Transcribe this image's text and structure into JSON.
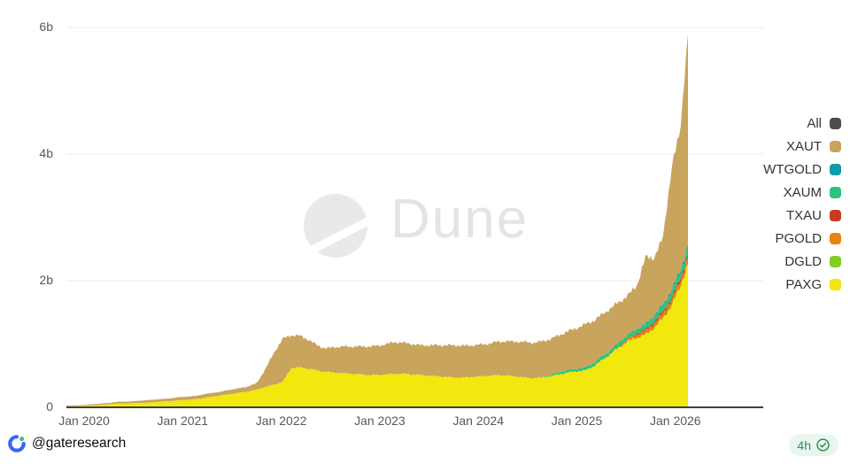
{
  "watermark": {
    "brand": "Dune"
  },
  "footer": {
    "handle": "@gateresearch",
    "logo": "gate-logo"
  },
  "badge": {
    "label": "4h",
    "icon": "verified-check-icon",
    "text_color": "#2e8b57",
    "bg": "#e9f6ef"
  },
  "chart_data": {
    "type": "area",
    "stacked": true,
    "title": "",
    "xlabel": "",
    "ylabel": "",
    "value_suffix": "b",
    "ylim": [
      0,
      6.2
    ],
    "grid": "horizontal",
    "legend_position": "right",
    "x_tick_labels": [
      "Jan 2020",
      "Jan 2021",
      "Jan 2022",
      "Jan 2023",
      "Jan 2024",
      "Jan 2025",
      "Jan 2026"
    ],
    "y_ticks": [
      {
        "label": "0",
        "value": 0
      },
      {
        "label": "2b",
        "value": 2
      },
      {
        "label": "4b",
        "value": 4
      },
      {
        "label": "6b",
        "value": 6
      }
    ],
    "legend": [
      {
        "label": "All",
        "color": "#4d4d4d"
      },
      {
        "label": "XAUT",
        "color": "#c9a45c"
      },
      {
        "label": "WTGOLD",
        "color": "#0f9bab"
      },
      {
        "label": "XAUM",
        "color": "#2ec27e"
      },
      {
        "label": "TXAU",
        "color": "#c93b1e"
      },
      {
        "label": "PGOLD",
        "color": "#e8830e"
      },
      {
        "label": "DGLD",
        "color": "#83cc26"
      },
      {
        "label": "PAXG",
        "color": "#efe513"
      }
    ],
    "stack_order_bottom_to_top": [
      "PAXG",
      "DGLD",
      "PGOLD",
      "TXAU",
      "XAUM",
      "WTGOLD",
      "XAUT"
    ],
    "x": [
      "2020-01",
      "2020-02",
      "2020-03",
      "2020-04",
      "2020-05",
      "2020-06",
      "2020-07",
      "2020-08",
      "2020-09",
      "2020-10",
      "2020-11",
      "2020-12",
      "2021-01",
      "2021-02",
      "2021-03",
      "2021-04",
      "2021-05",
      "2021-06",
      "2021-07",
      "2021-08",
      "2021-09",
      "2021-10",
      "2021-11",
      "2021-12",
      "2022-01",
      "2022-02",
      "2022-03",
      "2022-04",
      "2022-05",
      "2022-06",
      "2022-07",
      "2022-08",
      "2022-09",
      "2022-10",
      "2022-11",
      "2022-12",
      "2023-01",
      "2023-02",
      "2023-03",
      "2023-04",
      "2023-05",
      "2023-06",
      "2023-07",
      "2023-08",
      "2023-09",
      "2023-10",
      "2023-11",
      "2023-12",
      "2024-01",
      "2024-02",
      "2024-03",
      "2024-04",
      "2024-05",
      "2024-06",
      "2024-07",
      "2024-08",
      "2024-09",
      "2024-10",
      "2024-11",
      "2024-12",
      "2025-01",
      "2025-02",
      "2025-03",
      "2025-04",
      "2025-05",
      "2025-06",
      "2025-07",
      "2025-08",
      "2025-09",
      "2025-10",
      "2025-11",
      "2025-12",
      "2026-01"
    ],
    "series": [
      {
        "name": "PAXG",
        "color": "#f2e80e",
        "values": [
          0.02,
          0.02,
          0.03,
          0.03,
          0.04,
          0.05,
          0.06,
          0.06,
          0.07,
          0.07,
          0.08,
          0.09,
          0.1,
          0.11,
          0.12,
          0.13,
          0.15,
          0.17,
          0.19,
          0.21,
          0.23,
          0.25,
          0.28,
          0.32,
          0.36,
          0.4,
          0.62,
          0.63,
          0.61,
          0.58,
          0.56,
          0.55,
          0.54,
          0.53,
          0.52,
          0.51,
          0.51,
          0.52,
          0.53,
          0.53,
          0.52,
          0.51,
          0.5,
          0.49,
          0.48,
          0.47,
          0.47,
          0.48,
          0.49,
          0.5,
          0.51,
          0.5,
          0.49,
          0.47,
          0.46,
          0.47,
          0.49,
          0.52,
          0.55,
          0.57,
          0.58,
          0.65,
          0.75,
          0.85,
          0.95,
          1.05,
          1.1,
          1.15,
          1.25,
          1.4,
          1.6,
          1.9,
          2.3
        ]
      },
      {
        "name": "DGLD",
        "color": "#83cc26",
        "values": [
          0,
          0,
          0,
          0,
          0,
          0,
          0,
          0,
          0,
          0,
          0,
          0,
          0,
          0,
          0,
          0,
          0,
          0,
          0,
          0,
          0,
          0,
          0,
          0,
          0,
          0,
          0,
          0,
          0,
          0,
          0,
          0,
          0,
          0,
          0,
          0,
          0,
          0,
          0,
          0,
          0,
          0,
          0,
          0,
          0,
          0,
          0,
          0,
          0,
          0,
          0,
          0,
          0,
          0,
          0,
          0,
          0,
          0,
          0,
          0,
          0,
          0,
          0,
          0,
          0,
          0,
          0,
          0,
          0.01,
          0.01,
          0.01,
          0.01,
          0.01
        ]
      },
      {
        "name": "PGOLD",
        "color": "#e8830e",
        "values": [
          0,
          0,
          0,
          0,
          0,
          0,
          0,
          0,
          0,
          0,
          0,
          0,
          0,
          0,
          0,
          0,
          0,
          0,
          0,
          0,
          0,
          0,
          0,
          0,
          0,
          0,
          0,
          0,
          0,
          0,
          0,
          0,
          0,
          0,
          0,
          0,
          0,
          0,
          0,
          0,
          0,
          0,
          0,
          0,
          0,
          0,
          0,
          0,
          0,
          0,
          0,
          0,
          0,
          0,
          0,
          0,
          0,
          0,
          0,
          0,
          0,
          0,
          0,
          0,
          0.02,
          0.03,
          0.05,
          0.06,
          0.06,
          0.07,
          0.08,
          0.08,
          0.09
        ]
      },
      {
        "name": "TXAU",
        "color": "#c93b1e",
        "values": [
          0,
          0,
          0,
          0,
          0,
          0,
          0,
          0,
          0,
          0,
          0,
          0,
          0,
          0,
          0,
          0,
          0,
          0,
          0,
          0,
          0,
          0,
          0,
          0,
          0,
          0,
          0,
          0,
          0,
          0,
          0,
          0,
          0,
          0,
          0,
          0,
          0,
          0,
          0,
          0,
          0,
          0,
          0,
          0,
          0,
          0,
          0,
          0,
          0,
          0,
          0,
          0,
          0,
          0,
          0,
          0,
          0,
          0,
          0,
          0,
          0,
          0,
          0,
          0,
          0,
          0,
          0.02,
          0.02,
          0.03,
          0.03,
          0.03,
          0.04,
          0.04
        ]
      },
      {
        "name": "XAUM",
        "color": "#2ec27e",
        "values": [
          0,
          0,
          0,
          0,
          0,
          0,
          0,
          0,
          0,
          0,
          0,
          0,
          0,
          0,
          0,
          0,
          0,
          0,
          0,
          0,
          0,
          0,
          0,
          0,
          0,
          0,
          0,
          0,
          0,
          0,
          0,
          0,
          0,
          0,
          0,
          0,
          0,
          0,
          0,
          0,
          0,
          0,
          0,
          0,
          0,
          0,
          0,
          0,
          0,
          0,
          0,
          0,
          0,
          0,
          0,
          0,
          0.02,
          0.03,
          0.04,
          0.04,
          0.05,
          0.05,
          0.06,
          0.06,
          0.07,
          0.07,
          0.08,
          0.08,
          0.08,
          0.09,
          0.1,
          0.1,
          0.12
        ]
      },
      {
        "name": "WTGOLD",
        "color": "#0f9bab",
        "values": [
          0,
          0,
          0,
          0,
          0,
          0,
          0,
          0,
          0,
          0,
          0,
          0,
          0,
          0,
          0,
          0,
          0,
          0,
          0,
          0,
          0,
          0,
          0,
          0,
          0,
          0,
          0,
          0,
          0,
          0,
          0,
          0,
          0,
          0,
          0,
          0,
          0,
          0,
          0,
          0,
          0,
          0,
          0,
          0,
          0,
          0,
          0,
          0,
          0,
          0,
          0,
          0,
          0,
          0,
          0,
          0,
          0,
          0,
          0,
          0,
          0,
          0,
          0,
          0,
          0,
          0,
          0,
          0.01,
          0.02,
          0.02,
          0.03,
          0.03,
          0.04
        ]
      },
      {
        "name": "XAUT",
        "color": "#c9a45c",
        "values": [
          0.01,
          0.01,
          0.01,
          0.02,
          0.02,
          0.02,
          0.03,
          0.03,
          0.03,
          0.04,
          0.04,
          0.04,
          0.04,
          0.05,
          0.05,
          0.05,
          0.06,
          0.06,
          0.06,
          0.07,
          0.07,
          0.08,
          0.1,
          0.28,
          0.5,
          0.68,
          0.52,
          0.5,
          0.46,
          0.4,
          0.37,
          0.4,
          0.42,
          0.43,
          0.44,
          0.45,
          0.46,
          0.48,
          0.5,
          0.49,
          0.48,
          0.47,
          0.48,
          0.49,
          0.5,
          0.51,
          0.5,
          0.5,
          0.5,
          0.51,
          0.53,
          0.54,
          0.55,
          0.56,
          0.56,
          0.57,
          0.57,
          0.59,
          0.61,
          0.64,
          0.68,
          0.67,
          0.66,
          0.66,
          0.63,
          0.62,
          0.68,
          1.05,
          0.92,
          1.05,
          1.93,
          2.22,
          3.45
        ]
      }
    ]
  }
}
